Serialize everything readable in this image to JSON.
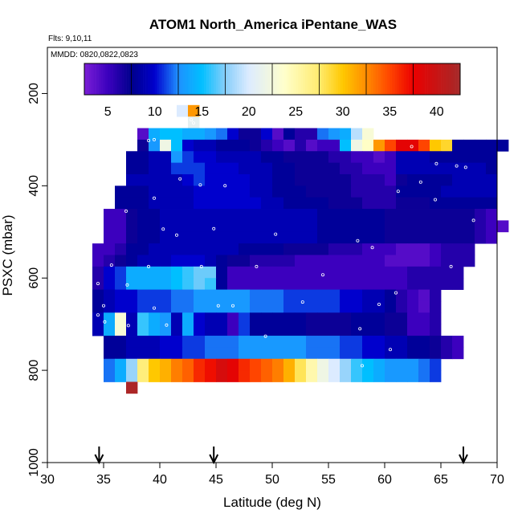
{
  "chart_data": {
    "type": "heatmap",
    "title": "ATOM1 North_America iPentane_WAS",
    "flights_label": "Flts: 9,10,11",
    "mmdd_label": "MMDD: 0820,0822,0823",
    "xlabel": "Latitude (deg N)",
    "ylabel": "PSXC (mbar)",
    "xlim": [
      30,
      70
    ],
    "ylim": [
      1000,
      100
    ],
    "x_ticks": [
      "30",
      "35",
      "40",
      "45",
      "50",
      "55",
      "60",
      "65",
      "70"
    ],
    "y_ticks": [
      "200",
      "400",
      "600",
      "800",
      "1000"
    ],
    "colorbar": {
      "range": [
        2.5,
        42.5
      ],
      "tick_labels": [
        "5",
        "10",
        "15",
        "20",
        "25",
        "30",
        "35",
        "40"
      ]
    },
    "colors": {
      "low": "#7b1fd6",
      "mid": "#ffffcc",
      "high": "#a52a2a"
    },
    "arrows_latitude": [
      34.6,
      44.8,
      67.0
    ],
    "bin_width_deg": 1.0,
    "bin_height_mbar": 25,
    "rows": [
      {
        "p": 237.5,
        "x0": 41.5,
        "v": [
          20,
          32
        ]
      },
      {
        "p": 262.5,
        "x0": 42.5,
        "v": [
          21
        ]
      },
      {
        "p": 287.5,
        "x0": 38.0,
        "v": [
          4,
          14,
          15,
          15,
          14,
          14,
          13,
          12,
          10,
          7,
          7,
          10,
          4,
          8,
          6,
          6,
          12,
          13,
          14,
          19,
          23
        ]
      },
      {
        "p": 312.5,
        "x0": 38.0,
        "v": [
          7,
          13,
          22,
          15,
          10,
          9,
          9,
          8,
          8,
          8,
          7,
          6,
          5,
          4,
          6,
          4,
          5,
          5,
          15,
          22,
          24,
          32,
          35,
          38,
          38,
          35,
          30,
          29,
          8,
          8,
          8,
          8,
          8
        ]
      },
      {
        "p": 337.5,
        "x0": 37.0,
        "v": [
          8,
          8,
          9,
          9,
          13,
          11,
          10,
          10,
          9,
          9,
          9,
          9,
          8,
          8,
          7,
          7,
          7,
          7,
          6,
          6,
          5,
          5,
          4,
          5,
          9,
          9,
          9,
          8,
          8,
          8,
          8,
          8,
          8
        ]
      },
      {
        "p": 362.5,
        "x0": 37.0,
        "v": [
          8,
          8,
          9,
          9,
          11,
          11,
          11,
          10,
          10,
          10,
          9,
          9,
          9,
          8,
          8,
          7,
          7,
          7,
          7,
          6,
          6,
          5,
          5,
          5,
          9,
          9,
          9,
          9,
          9,
          9,
          9,
          9,
          8
        ]
      },
      {
        "p": 387.5,
        "x0": 37.0,
        "v": [
          9,
          9,
          9,
          9,
          9,
          10,
          11,
          10,
          10,
          10,
          10,
          9,
          9,
          8,
          8,
          7,
          7,
          7,
          7,
          7,
          6,
          6,
          6,
          5,
          7,
          8,
          8,
          8,
          8,
          9,
          9,
          9,
          9
        ]
      },
      {
        "p": 412.5,
        "x0": 36.0,
        "v": [
          8,
          8,
          8,
          9,
          9,
          9,
          9,
          10,
          10,
          10,
          10,
          10,
          9,
          9,
          8,
          8,
          8,
          7,
          7,
          7,
          7,
          6,
          6,
          6,
          6,
          8,
          8,
          8,
          8,
          9,
          9,
          9,
          9,
          9
        ]
      },
      {
        "p": 437.5,
        "x0": 36.0,
        "v": [
          8,
          8,
          8,
          9,
          9,
          9,
          9,
          10,
          10,
          10,
          10,
          10,
          10,
          9,
          9,
          8,
          8,
          8,
          8,
          7,
          7,
          7,
          6,
          6,
          6,
          7,
          7,
          7,
          8,
          8,
          8,
          8,
          8,
          8
        ]
      },
      {
        "p": 462.5,
        "x0": 35.0,
        "v": [
          5,
          5,
          7,
          8,
          8,
          9,
          9,
          9,
          9,
          9,
          9,
          9,
          9,
          9,
          9,
          9,
          9,
          9,
          9,
          8,
          8,
          8,
          8,
          8,
          8,
          7,
          7,
          7,
          7,
          7,
          7,
          7,
          7,
          6,
          5
        ]
      },
      {
        "p": 487.5,
        "x0": 35.0,
        "v": [
          5,
          5,
          7,
          8,
          8,
          9,
          9,
          9,
          9,
          9,
          9,
          9,
          9,
          9,
          9,
          9,
          9,
          9,
          9,
          8,
          8,
          8,
          8,
          8,
          8,
          7,
          7,
          7,
          7,
          7,
          7,
          7,
          7,
          6,
          5,
          4
        ]
      },
      {
        "p": 512.5,
        "x0": 35.0,
        "v": [
          5,
          5,
          7,
          8,
          8,
          9,
          9,
          9,
          9,
          9,
          9,
          9,
          9,
          9,
          9,
          9,
          9,
          9,
          9,
          8,
          8,
          8,
          8,
          8,
          8,
          7,
          7,
          7,
          7,
          7,
          7,
          7,
          7,
          6,
          5
        ]
      },
      {
        "p": 537.5,
        "x0": 34.0,
        "v": [
          5,
          5,
          6,
          8,
          8,
          9,
          9,
          9,
          9,
          9,
          9,
          9,
          9,
          8,
          8,
          8,
          8,
          7,
          7,
          7,
          7,
          6,
          6,
          6,
          5,
          5,
          5,
          4,
          4,
          4,
          5,
          6,
          6,
          6
        ]
      },
      {
        "p": 562.5,
        "x0": 34.0,
        "v": [
          5,
          6,
          7,
          8,
          9,
          9,
          9,
          10,
          10,
          10,
          9,
          8,
          7,
          7,
          6,
          6,
          6,
          6,
          5,
          5,
          5,
          5,
          5,
          5,
          5,
          5,
          4,
          4,
          4,
          4,
          5,
          6,
          6,
          6
        ]
      },
      {
        "p": 587.5,
        "x0": 34.0,
        "v": [
          6,
          10,
          11,
          14,
          14,
          14,
          14,
          15,
          16,
          17,
          17,
          8,
          5,
          5,
          5,
          5,
          5,
          5,
          5,
          5,
          5,
          5,
          5,
          5,
          5,
          5,
          5,
          5,
          6,
          6,
          6,
          6,
          6
        ]
      },
      {
        "p": 612.5,
        "x0": 34.0,
        "v": [
          6,
          10,
          11,
          14,
          14,
          14,
          14,
          15,
          16,
          17,
          16,
          8,
          5,
          5,
          5,
          5,
          5,
          5,
          5,
          5,
          5,
          5,
          5,
          5,
          5,
          5,
          5,
          5,
          6,
          6,
          6,
          6,
          6
        ]
      },
      {
        "p": 637.5,
        "x0": 34.0,
        "v": [
          8,
          9,
          10,
          10,
          11,
          11,
          11,
          12,
          12,
          13,
          13,
          13,
          13,
          13,
          12,
          12,
          12,
          11,
          11,
          11,
          11,
          11,
          10,
          10,
          9,
          9,
          8,
          6,
          5,
          4,
          6
        ]
      },
      {
        "p": 662.5,
        "x0": 34.0,
        "v": [
          8,
          9,
          10,
          10,
          11,
          11,
          11,
          12,
          12,
          13,
          13,
          13,
          13,
          13,
          12,
          12,
          12,
          11,
          11,
          11,
          11,
          11,
          10,
          10,
          9,
          9,
          8,
          6,
          5,
          4,
          6
        ]
      },
      {
        "p": 687.5,
        "x0": 34.0,
        "v": [
          9,
          14,
          23,
          9,
          16,
          14,
          13,
          9,
          14,
          10,
          9,
          9,
          5,
          11,
          8,
          8,
          8,
          8,
          8,
          7,
          7,
          7,
          7,
          8,
          8,
          8,
          7,
          7,
          5,
          5,
          6
        ]
      },
      {
        "p": 712.5,
        "x0": 34.0,
        "v": [
          9,
          14,
          23,
          9,
          16,
          14,
          13,
          9,
          14,
          10,
          9,
          9,
          5,
          11,
          8,
          8,
          8,
          8,
          8,
          7,
          7,
          7,
          7,
          8,
          8,
          8,
          7,
          7,
          5,
          5,
          6
        ]
      },
      {
        "p": 737.5,
        "x0": 35.0,
        "v": [
          8,
          8,
          9,
          9,
          9,
          10,
          10,
          11,
          11,
          12,
          12,
          12,
          13,
          13,
          13,
          13,
          13,
          13,
          12,
          12,
          12,
          11,
          11,
          10,
          10,
          9,
          9,
          8,
          8,
          7,
          6,
          5
        ]
      },
      {
        "p": 762.5,
        "x0": 35.0,
        "v": [
          8,
          8,
          9,
          9,
          9,
          10,
          10,
          11,
          11,
          12,
          12,
          12,
          13,
          13,
          13,
          13,
          13,
          13,
          12,
          12,
          12,
          11,
          11,
          10,
          10,
          9,
          9,
          8,
          8,
          7,
          6,
          5
        ]
      },
      {
        "p": 787.5,
        "x0": 35.0,
        "v": [
          12,
          14,
          18,
          27,
          30,
          31,
          33,
          34,
          36,
          37,
          39,
          38,
          36,
          35,
          34,
          33,
          31,
          28,
          25,
          22,
          20,
          18,
          16,
          15,
          14,
          13,
          13,
          13,
          12,
          11
        ]
      },
      {
        "p": 812.5,
        "x0": 35.0,
        "v": [
          12,
          14,
          18,
          27,
          30,
          31,
          33,
          34,
          36,
          37,
          39,
          38,
          36,
          35,
          34,
          33,
          31,
          28,
          25,
          22,
          20,
          18,
          16,
          15,
          14,
          13,
          13,
          13,
          12,
          11
        ]
      },
      {
        "p": 837.5,
        "x0": 37.0,
        "v": [
          42
        ]
      }
    ],
    "sample_points": [
      [
        39.0,
        302
      ],
      [
        39.5,
        300
      ],
      [
        42.3,
        270
      ],
      [
        42.8,
        257
      ],
      [
        43.0,
        264
      ],
      [
        41.8,
        385
      ],
      [
        43.6,
        398
      ],
      [
        45.8,
        400
      ],
      [
        39.5,
        427
      ],
      [
        37.0,
        455
      ],
      [
        40.3,
        494
      ],
      [
        41.5,
        507
      ],
      [
        44.8,
        493
      ],
      [
        50.3,
        505
      ],
      [
        58.9,
        534
      ],
      [
        57.6,
        519
      ],
      [
        35.7,
        572
      ],
      [
        39.0,
        575
      ],
      [
        43.7,
        575
      ],
      [
        48.6,
        575
      ],
      [
        54.5,
        593
      ],
      [
        34.5,
        612
      ],
      [
        37.1,
        615
      ],
      [
        61.0,
        632
      ],
      [
        35.0,
        660
      ],
      [
        39.5,
        665
      ],
      [
        45.2,
        660
      ],
      [
        46.5,
        660
      ],
      [
        52.7,
        652
      ],
      [
        59.5,
        657
      ],
      [
        34.5,
        680
      ],
      [
        35.1,
        695
      ],
      [
        37.2,
        703
      ],
      [
        40.6,
        702
      ],
      [
        49.4,
        726
      ],
      [
        57.8,
        710
      ],
      [
        60.5,
        755
      ],
      [
        58.0,
        790
      ],
      [
        34.6,
        815
      ],
      [
        62.4,
        315
      ],
      [
        66.4,
        357
      ],
      [
        67.2,
        360
      ],
      [
        67.9,
        475
      ],
      [
        64.6,
        352
      ],
      [
        61.2,
        412
      ],
      [
        63.2,
        392
      ],
      [
        64.5,
        430
      ],
      [
        65.9,
        575
      ]
    ]
  }
}
